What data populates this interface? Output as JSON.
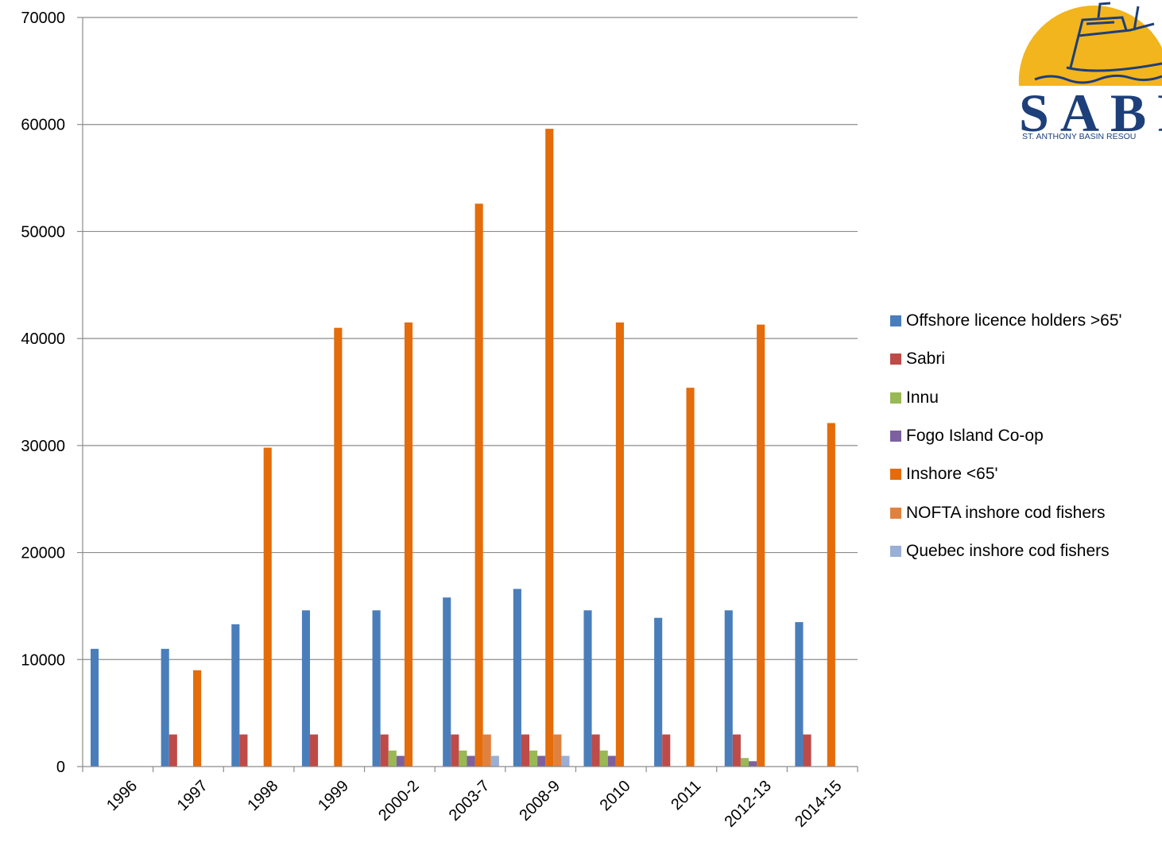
{
  "chart_data": {
    "type": "bar",
    "categories": [
      "1996",
      "1997",
      "1998",
      "1999",
      "2000-2",
      "2003-7",
      "2008-9",
      "2010",
      "2011",
      "2012-13",
      "2014-15"
    ],
    "ylim": [
      0,
      70000
    ],
    "yticks": [
      0,
      10000,
      20000,
      30000,
      40000,
      50000,
      60000,
      70000
    ],
    "grid": true,
    "legend_position": "right",
    "series": [
      {
        "name": "Offshore licence holders >65'",
        "color": "#4a7ebb",
        "values": [
          11000,
          11000,
          13300,
          14600,
          14600,
          15800,
          16600,
          14600,
          13900,
          14600,
          13500
        ]
      },
      {
        "name": "Sabri",
        "color": "#be4b48",
        "values": [
          0,
          3000,
          3000,
          3000,
          3000,
          3000,
          3000,
          3000,
          3000,
          3000,
          3000
        ]
      },
      {
        "name": "Innu",
        "color": "#98b954",
        "values": [
          0,
          0,
          0,
          0,
          1500,
          1500,
          1500,
          1500,
          0,
          800,
          0
        ]
      },
      {
        "name": "Fogo Island Co-op",
        "color": "#7d60a0",
        "values": [
          0,
          0,
          0,
          0,
          1000,
          1000,
          1000,
          1000,
          0,
          500,
          0
        ]
      },
      {
        "name": "Inshore <65'",
        "color": "#e46c0a",
        "values": [
          0,
          9000,
          29800,
          41000,
          41500,
          52600,
          59600,
          41500,
          35400,
          41300,
          32100
        ]
      },
      {
        "name": "NOFTA inshore cod fishers",
        "color": "#e0813f",
        "values": [
          0,
          0,
          0,
          0,
          0,
          3000,
          3000,
          0,
          0,
          0,
          0
        ]
      },
      {
        "name": "Quebec inshore cod fishers",
        "color": "#9aafd5",
        "values": [
          0,
          0,
          0,
          0,
          0,
          1000,
          1000,
          0,
          0,
          0,
          0
        ]
      }
    ]
  },
  "logo": {
    "text": "SABR",
    "subtitle": "ST. ANTHONY BASIN RESOU",
    "colors": {
      "sun": "#f2b51d",
      "ink": "#1d3f7a"
    }
  }
}
